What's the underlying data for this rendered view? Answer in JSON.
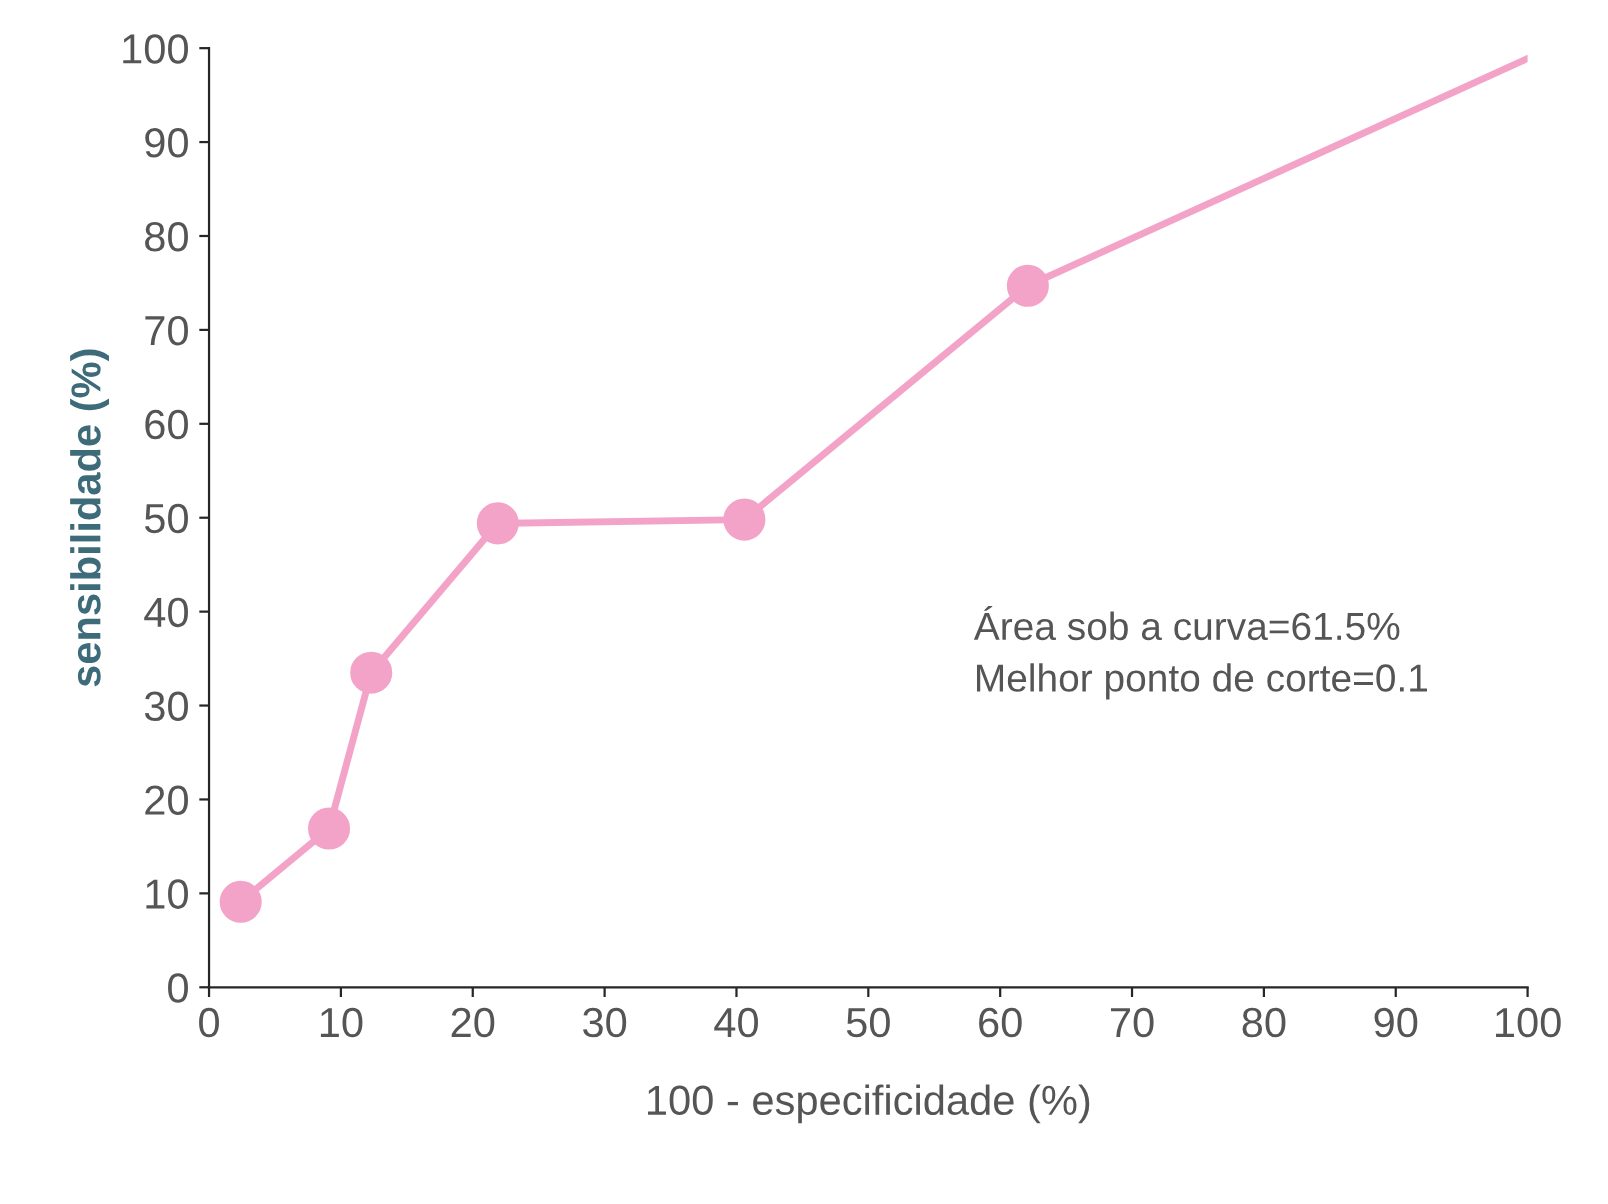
{
  "chart_data": {
    "type": "line",
    "xlabel": "100 - especificidade (%)",
    "ylabel": "sensibilidade (%)",
    "series": [
      {
        "color": "#f4a3c8",
        "x": [
          2.4,
          9.1,
          12.3,
          21.9,
          40.6,
          62.1,
          100
        ],
        "values": [
          9.1,
          16.9,
          33.5,
          49.4,
          49.8,
          74.7,
          98.9
        ],
        "marker": "none"
      },
      {
        "type": "scatter",
        "color": "#f4a3c8",
        "x": [
          2.4,
          9.1,
          12.3,
          21.9,
          40.6,
          62.1
        ],
        "values": [
          9.1,
          16.9,
          33.5,
          49.4,
          49.8,
          74.7
        ],
        "marker": "circle"
      }
    ],
    "xlim": [
      0,
      100
    ],
    "ylim": [
      0,
      100
    ],
    "xticks": [
      0,
      10,
      20,
      30,
      40,
      50,
      60,
      70,
      80,
      90,
      100
    ],
    "yticks": [
      0,
      10,
      20,
      30,
      40,
      50,
      60,
      70,
      80,
      90,
      100
    ],
    "grid": false,
    "annotations": [
      "Área sob a curva=61.5%",
      "Melhor ponto de corte=0.1"
    ]
  }
}
